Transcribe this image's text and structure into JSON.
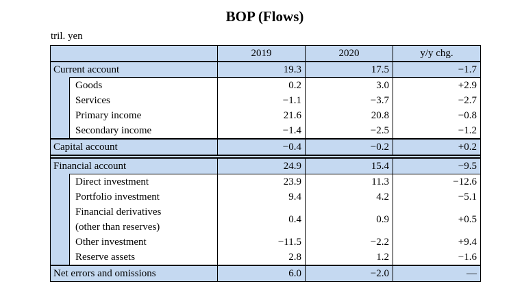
{
  "title": "BOP (Flows)",
  "unit_label": "tril. yen",
  "colors": {
    "section_row_bg": "#c5d9f1",
    "border": "#000000",
    "background": "#ffffff"
  },
  "table": {
    "header": {
      "blank": "",
      "c2019": "2019",
      "c2020": "2020",
      "cyy": "y/y chg."
    },
    "rows": {
      "current": {
        "label": "Current account",
        "y2019": "19.3",
        "y2020": "17.5",
        "yy": "−1.7"
      },
      "goods": {
        "label": "Goods",
        "y2019": "0.2",
        "y2020": "3.0",
        "yy": "+2.9"
      },
      "services": {
        "label": "Services",
        "y2019": "−1.1",
        "y2020": "−3.7",
        "yy": "−2.7"
      },
      "primary": {
        "label": "Primary income",
        "y2019": "21.6",
        "y2020": "20.8",
        "yy": "−0.8"
      },
      "secondary": {
        "label": "Secondary income",
        "y2019": "−1.4",
        "y2020": "−2.5",
        "yy": "−1.2"
      },
      "capital": {
        "label": "Capital account",
        "y2019": "−0.4",
        "y2020": "−0.2",
        "yy": "+0.2"
      },
      "financial": {
        "label": "Financial account",
        "y2019": "24.9",
        "y2020": "15.4",
        "yy": "−9.5"
      },
      "direct": {
        "label": "Direct investment",
        "y2019": "23.9",
        "y2020": "11.3",
        "yy": "−12.6"
      },
      "portfolio": {
        "label": "Portfolio investment",
        "y2019": "9.4",
        "y2020": "4.2",
        "yy": "−5.1"
      },
      "derivatives": {
        "label1": "Financial derivatives",
        "label2": "(other than reserves)",
        "y2019": "0.4",
        "y2020": "0.9",
        "yy": "+0.5"
      },
      "other": {
        "label": "Other investment",
        "y2019": "−11.5",
        "y2020": "−2.2",
        "yy": "+9.4"
      },
      "reserve": {
        "label": "Reserve assets",
        "y2019": "2.8",
        "y2020": "1.2",
        "yy": "−1.6"
      },
      "net": {
        "label": "Net errors and omissions",
        "y2019": "6.0",
        "y2020": "−2.0",
        "yy": "—"
      }
    }
  }
}
